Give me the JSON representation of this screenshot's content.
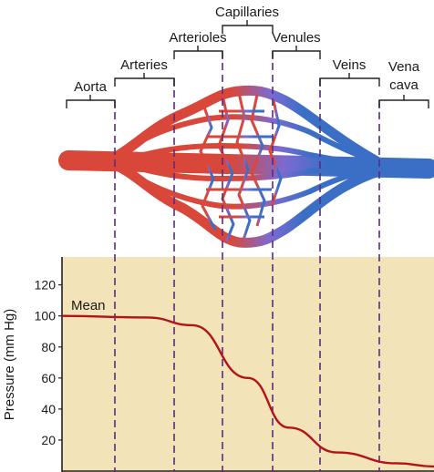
{
  "segments": [
    {
      "id": "aorta",
      "label": "Aorta"
    },
    {
      "id": "arteries",
      "label": "Arteries"
    },
    {
      "id": "arterioles",
      "label": "Arterioles"
    },
    {
      "id": "capillaries",
      "label": "Capillaries"
    },
    {
      "id": "venules",
      "label": "Venules"
    },
    {
      "id": "veins",
      "label": "Veins"
    },
    {
      "id": "vena-cava",
      "label_line1": "Vena",
      "label_line2": "cava"
    }
  ],
  "chart_data": {
    "type": "line",
    "ylabel": "Pressure (mm Hg)",
    "yticks": [
      20,
      40,
      60,
      80,
      100,
      120
    ],
    "ylim": [
      0,
      138
    ],
    "series": [
      {
        "name": "Mean",
        "x": [
          0,
          0.23,
          0.35,
          0.5,
          0.61,
          0.74,
          0.9,
          1.0
        ],
        "values": [
          100,
          99,
          94,
          60,
          28,
          12,
          5,
          3
        ]
      }
    ]
  },
  "colors": {
    "arterial": "#d9473a",
    "venous": "#3b6fc6",
    "divider": "#5a2a86",
    "plot_bg": "#f3e3b8",
    "curve": "#b3121b"
  }
}
